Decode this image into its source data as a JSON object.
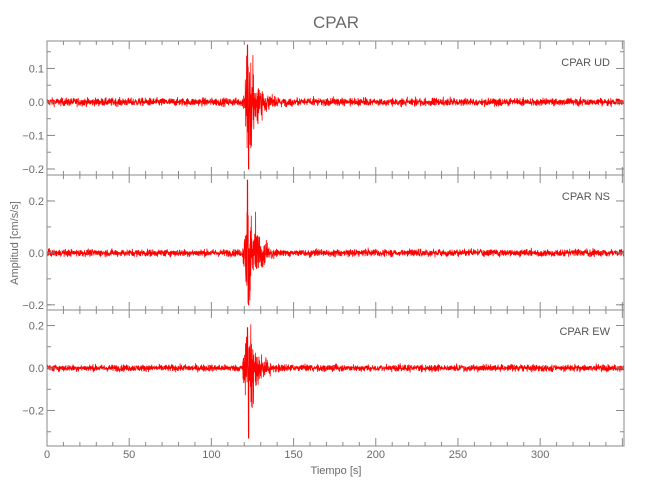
{
  "chart_data": {
    "type": "line",
    "title": "CPAR",
    "xlabel": "Tiempo [s]",
    "ylabel": "Amplitud [cm/s/s]",
    "xlim": [
      0,
      351
    ],
    "xticks": [
      0,
      50,
      100,
      150,
      200,
      250,
      300
    ],
    "xtick_labels": [
      "0",
      "50",
      "100",
      "150",
      "200",
      "250",
      "300"
    ],
    "line_color": "#ff0000",
    "axis_color": "#8a8a8a",
    "grid": false,
    "panels": [
      {
        "label": "CPAR   UD",
        "ylim": [
          -0.218,
          0.182
        ],
        "yticks": [
          0.1,
          0.0,
          -0.1,
          -0.2
        ],
        "ytick_labels": [
          "0.1",
          "0.0",
          "-0.1",
          "-0.2"
        ],
        "noise_amplitude": 0.006,
        "event_time": 120,
        "peak_positive": 0.17,
        "peak_negative": -0.2
      },
      {
        "label": "CPAR   NS",
        "ylim": [
          -0.22,
          0.3
        ],
        "yticks": [
          0.2,
          0.0,
          -0.2
        ],
        "ytick_labels": [
          "0.2",
          "0.0",
          "-0.2"
        ],
        "noise_amplitude": 0.007,
        "event_time": 120,
        "peak_positive": 0.28,
        "peak_negative": -0.2
      },
      {
        "label": "CPAR   EW",
        "ylim": [
          -0.367,
          0.273
        ],
        "yticks": [
          0.2,
          0.0,
          -0.2
        ],
        "ytick_labels": [
          "0.2",
          "0.0",
          "-0.2"
        ],
        "noise_amplitude": 0.008,
        "event_time": 120,
        "peak_positive": 0.19,
        "peak_negative": -0.33
      }
    ]
  }
}
